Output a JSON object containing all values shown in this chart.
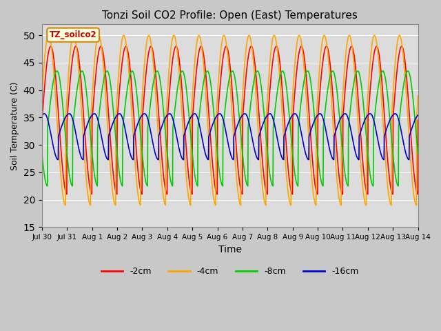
{
  "title": "Tonzi Soil CO2 Profile: Open (East) Temperatures",
  "xlabel": "Time",
  "ylabel": "Soil Temperature (C)",
  "ylim": [
    15,
    52
  ],
  "yticks": [
    15,
    20,
    25,
    30,
    35,
    40,
    45,
    50
  ],
  "plot_bg_color": "#dcdcdc",
  "fig_bg_color": "#c8c8c8",
  "line_colors": [
    "#ff0000",
    "#ffa500",
    "#00cc00",
    "#0000cc"
  ],
  "line_labels": [
    "-2cm",
    "-4cm",
    "-8cm",
    "-16cm"
  ],
  "watermark": "TZ_soilco2",
  "num_points": 1440,
  "start_day": 0,
  "end_day": 15,
  "amplitudes": [
    13.5,
    15.5,
    10.5,
    4.2
  ],
  "means": [
    34.5,
    34.5,
    33.0,
    31.5
  ],
  "phase_shifts": [
    0.0,
    -0.06,
    0.22,
    0.65
  ],
  "period": 1.0,
  "asymmetry": [
    0.35,
    0.32,
    0.38,
    0.45
  ],
  "tick_labels": [
    "Jul 30",
    "Jul 31",
    "Aug 1",
    "Aug 2",
    "Aug 3",
    "Aug 4",
    "Aug 5",
    "Aug 6",
    "Aug 7",
    "Aug 8",
    "Aug 9",
    "Aug 10",
    "Aug 11",
    "Aug 12",
    "Aug 13",
    "Aug 14"
  ],
  "tick_positions": [
    0,
    1,
    2,
    3,
    4,
    5,
    6,
    7,
    8,
    9,
    10,
    11,
    12,
    13,
    14,
    15
  ]
}
